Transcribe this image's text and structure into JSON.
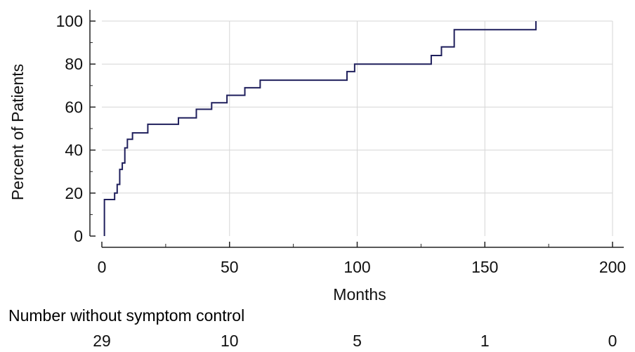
{
  "chart_data": {
    "type": "line",
    "step": true,
    "title": "",
    "xlabel": "Months",
    "ylabel": "Percent of Patients",
    "xlim": [
      0,
      200
    ],
    "ylim": [
      0,
      100
    ],
    "xticks": [
      0,
      50,
      100,
      150,
      200
    ],
    "yticks": [
      0,
      20,
      40,
      60,
      80,
      100
    ],
    "grid": true,
    "series": [
      {
        "color": "#1f1f5c",
        "x": [
          1,
          1,
          5,
          6,
          7,
          8,
          9,
          10,
          12,
          18,
          30,
          37,
          43,
          49,
          56,
          62,
          96,
          99,
          129,
          133,
          138,
          170
        ],
        "y": [
          0,
          17,
          20,
          24,
          31,
          34,
          41,
          45,
          48,
          52,
          55,
          59,
          62,
          65.5,
          69,
          72.5,
          76.5,
          80,
          84,
          88,
          96,
          100
        ]
      }
    ],
    "risk_table": {
      "title": "Number without symptom control",
      "times": [
        0,
        50,
        100,
        150,
        200
      ],
      "counts": [
        "29",
        "10",
        "5",
        "1",
        "0"
      ]
    }
  }
}
